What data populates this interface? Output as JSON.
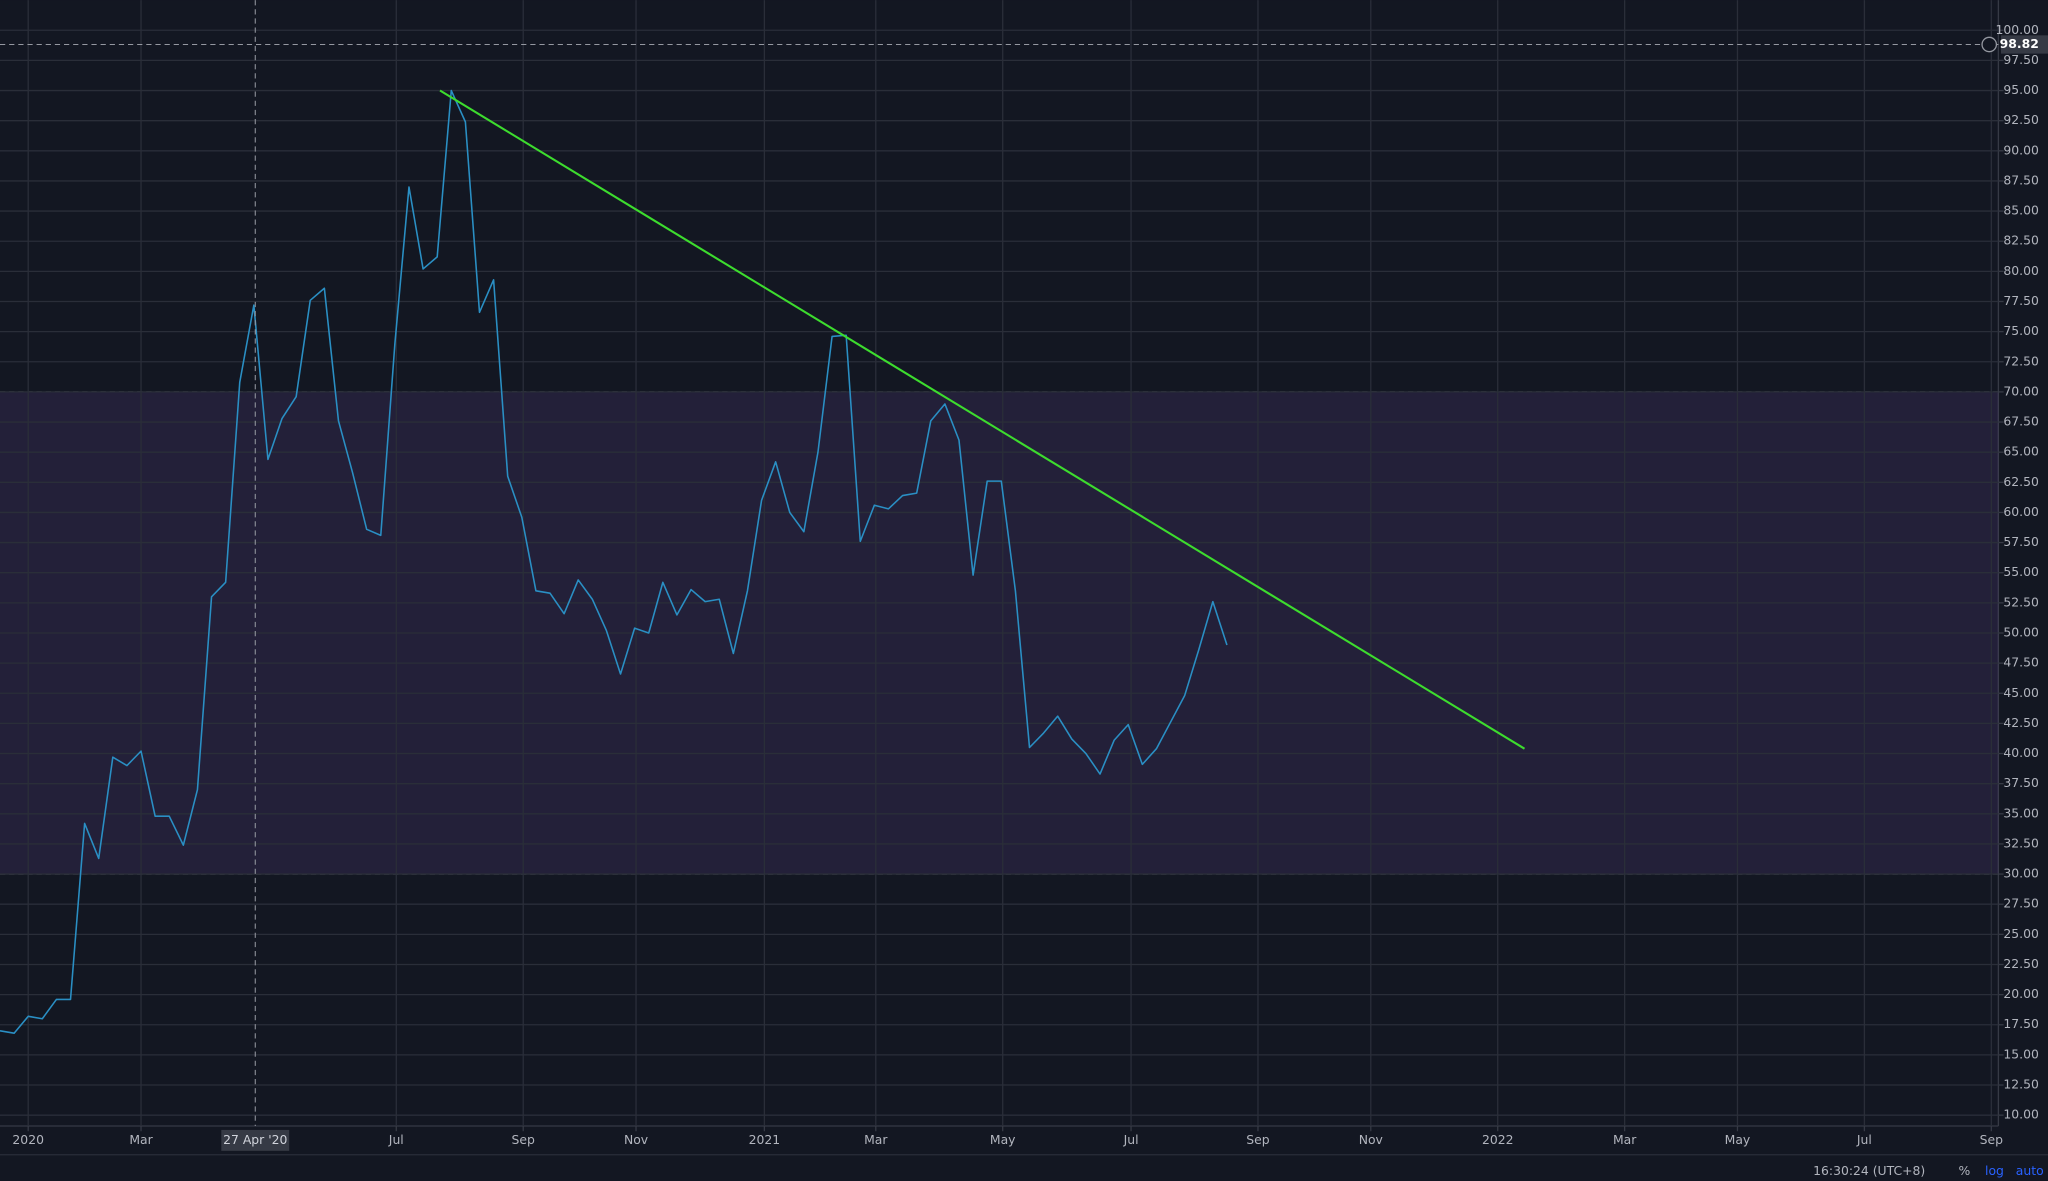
{
  "chart_data": {
    "type": "line",
    "x": [
      0,
      1,
      2,
      3,
      4,
      5,
      6,
      7,
      8,
      9,
      10,
      11,
      12,
      13,
      14,
      15,
      16,
      17,
      18,
      19,
      20,
      21,
      22,
      23,
      24,
      25,
      26,
      27,
      28,
      29,
      30,
      31,
      32,
      33,
      34,
      35,
      36,
      37,
      38,
      39,
      40,
      41,
      42,
      43,
      44,
      45,
      46,
      47,
      48,
      49,
      50,
      51,
      52,
      53,
      54,
      55,
      56,
      57,
      58,
      59,
      60,
      61,
      62,
      63,
      64,
      65,
      66,
      67,
      68,
      69,
      70,
      71,
      72,
      73,
      74,
      75,
      76,
      77,
      78,
      79,
      80,
      81,
      82,
      83,
      84,
      85,
      86,
      87
    ],
    "series": [
      {
        "color": "#2a8fc4",
        "values": [
          17.0,
          16.8,
          18.2,
          18.0,
          19.6,
          19.6,
          34.2,
          31.3,
          39.7,
          39.0,
          40.2,
          34.8,
          34.8,
          32.4,
          37.0,
          53.0,
          54.2,
          70.8,
          77.2,
          64.4,
          67.8,
          69.6,
          77.6,
          78.6,
          67.6,
          63.3,
          58.6,
          58.1,
          74.0,
          87.0,
          80.2,
          81.2,
          95.0,
          92.4,
          76.6,
          79.3,
          63.0,
          59.6,
          53.5,
          53.3,
          51.6,
          54.4,
          52.8,
          50.2,
          46.6,
          50.4,
          50.0,
          54.2,
          51.5,
          53.6,
          52.6,
          52.8,
          48.3,
          53.5,
          61.0,
          64.2,
          60.0,
          58.4,
          65.0,
          74.6,
          74.7,
          57.6,
          60.6,
          60.3,
          61.4,
          61.6,
          67.6,
          69.0,
          66.0,
          54.8,
          62.6,
          62.6,
          53.5,
          40.5,
          41.7,
          43.1,
          41.2,
          40.0,
          38.3,
          41.1,
          42.4,
          39.1,
          40.4,
          42.6,
          44.8,
          48.6,
          52.6,
          49.0
        ]
      }
    ],
    "trendline": {
      "color": "#3ddc2e",
      "x": [
        31.2,
        108.1
      ],
      "values": [
        95.0,
        40.4
      ]
    },
    "band": {
      "color": "#7e57c2",
      "range": [
        30,
        70
      ]
    },
    "xlim": [
      0,
      141.7
    ],
    "ylim": [
      9.1,
      102.5
    ],
    "xticks": [
      {
        "value": 2.0,
        "label": "2020"
      },
      {
        "value": 10.0,
        "label": "Mar"
      },
      {
        "value": 28.1,
        "label": "Jul"
      },
      {
        "value": 37.1,
        "label": "Sep"
      },
      {
        "value": 45.1,
        "label": "Nov"
      },
      {
        "value": 54.2,
        "label": "2021"
      },
      {
        "value": 62.1,
        "label": "Mar"
      },
      {
        "value": 71.1,
        "label": "May"
      },
      {
        "value": 80.2,
        "label": "Jul"
      },
      {
        "value": 89.2,
        "label": "Sep"
      },
      {
        "value": 97.2,
        "label": "Nov"
      },
      {
        "value": 106.2,
        "label": "2022"
      },
      {
        "value": 115.2,
        "label": "Mar"
      },
      {
        "value": 123.2,
        "label": "May"
      },
      {
        "value": 132.2,
        "label": "Jul"
      },
      {
        "value": 141.2,
        "label": "Sep"
      }
    ],
    "yticks": [
      {
        "value": 10,
        "label": "10.00"
      },
      {
        "value": 12.5,
        "label": "12.50"
      },
      {
        "value": 15,
        "label": "15.00"
      },
      {
        "value": 17.5,
        "label": "17.50"
      },
      {
        "value": 20,
        "label": "20.00"
      },
      {
        "value": 22.5,
        "label": "22.50"
      },
      {
        "value": 25,
        "label": "25.00"
      },
      {
        "value": 27.5,
        "label": "27.50"
      },
      {
        "value": 30,
        "label": "30.00"
      },
      {
        "value": 32.5,
        "label": "32.50"
      },
      {
        "value": 35,
        "label": "35.00"
      },
      {
        "value": 37.5,
        "label": "37.50"
      },
      {
        "value": 40,
        "label": "40.00"
      },
      {
        "value": 42.5,
        "label": "42.50"
      },
      {
        "value": 45,
        "label": "45.00"
      },
      {
        "value": 47.5,
        "label": "47.50"
      },
      {
        "value": 50,
        "label": "50.00"
      },
      {
        "value": 52.5,
        "label": "52.50"
      },
      {
        "value": 55,
        "label": "55.00"
      },
      {
        "value": 57.5,
        "label": "57.50"
      },
      {
        "value": 60,
        "label": "60.00"
      },
      {
        "value": 62.5,
        "label": "62.50"
      },
      {
        "value": 65,
        "label": "65.00"
      },
      {
        "value": 67.5,
        "label": "67.50"
      },
      {
        "value": 70,
        "label": "70.00"
      },
      {
        "value": 72.5,
        "label": "72.50"
      },
      {
        "value": 75,
        "label": "75.00"
      },
      {
        "value": 77.5,
        "label": "77.50"
      },
      {
        "value": 80,
        "label": "80.00"
      },
      {
        "value": 82.5,
        "label": "82.50"
      },
      {
        "value": 85,
        "label": "85.00"
      },
      {
        "value": 87.5,
        "label": "87.50"
      },
      {
        "value": 90,
        "label": "90.00"
      },
      {
        "value": 92.5,
        "label": "92.50"
      },
      {
        "value": 95,
        "label": "95.00"
      },
      {
        "value": 97.5,
        "label": "97.50"
      },
      {
        "value": 100,
        "label": "100.00"
      }
    ],
    "grid": true,
    "crosshair": {
      "x": {
        "value": 18.1,
        "label": "27 Apr '20"
      },
      "y": {
        "value": 98.82,
        "label": "98.82"
      }
    },
    "status_bar": {
      "time": "16:30:24 (UTC+8)",
      "buttons": [
        "%",
        "log",
        "auto"
      ]
    }
  }
}
